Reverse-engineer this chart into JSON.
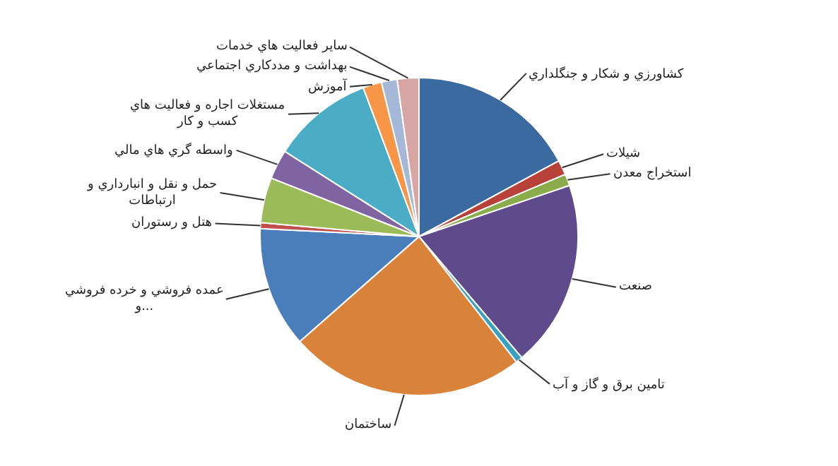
{
  "chart_data": {
    "type": "pie",
    "categories": [
      "کشاورزي و شکار و جنگلداري",
      "شيلات",
      "استخراج معدن",
      "صنعت",
      "تامين برق و گاز و آب",
      "ساختمان",
      "عمده فروشي و خرده فروشي و...",
      "هتل و رستوران",
      "حمل و نقل و انبارداري و ارتباطات",
      "واسطه گري هاي مالي",
      "مستغلات اجاره و فعاليت هاي کسب و کار",
      "آموزش",
      "بهداشت و مددکاري اجتماعي",
      "ساير فعاليت هاي خدمات"
    ],
    "values": [
      17.1,
      1.5,
      1.2,
      19,
      0.7,
      24,
      12.3,
      0.6,
      4.6,
      3,
      10.3,
      1.9,
      1.6,
      2.2
    ],
    "colors": [
      "#3a6aa0",
      "#b8413a",
      "#8aac4a",
      "#5f4b8b",
      "#3aa0bf",
      "#d9823a",
      "#4a7ebb",
      "#c0504d",
      "#9bbb59",
      "#8064a2",
      "#4bacc6",
      "#f79646",
      "#a5b8d8",
      "#d8a5a5"
    ],
    "legend": false
  }
}
